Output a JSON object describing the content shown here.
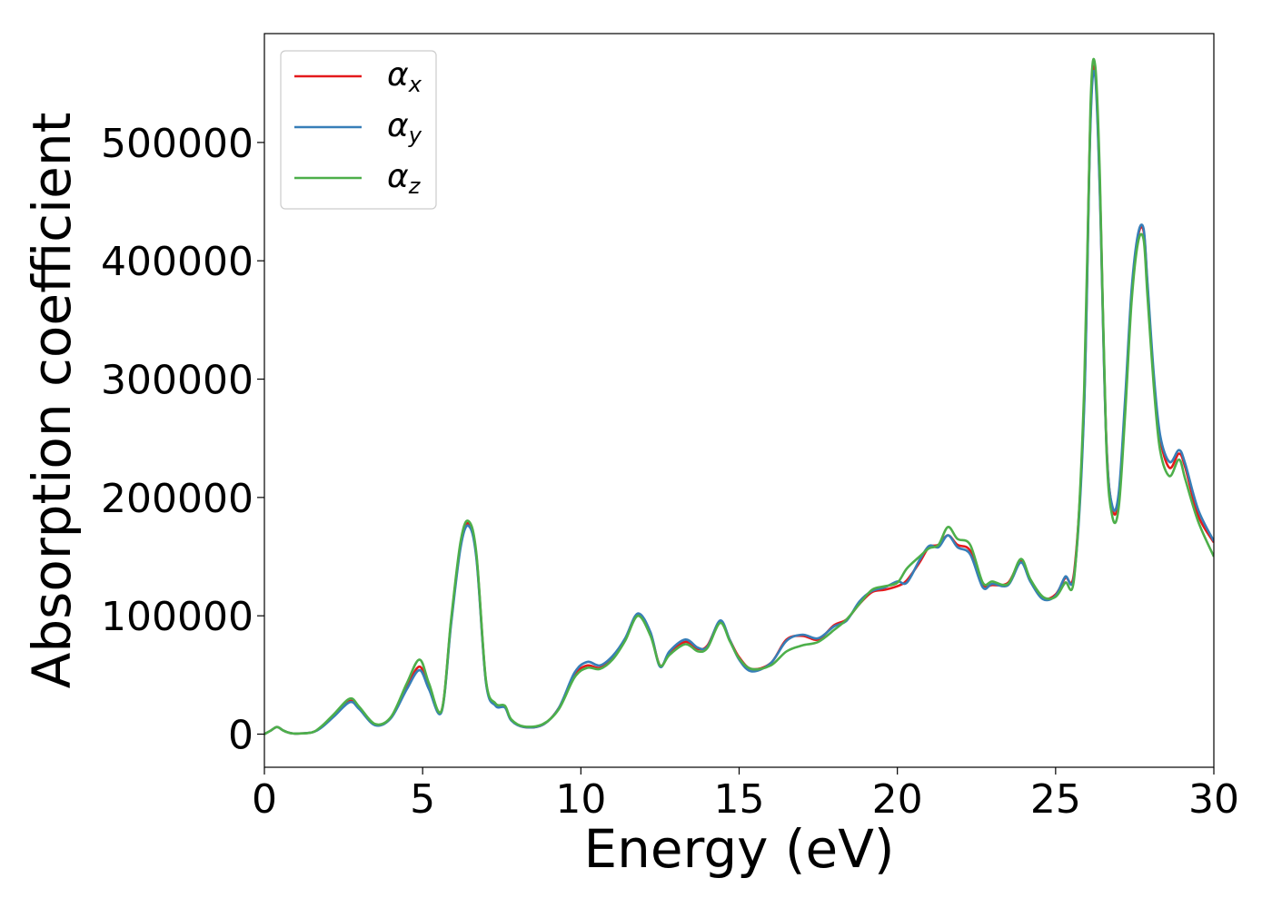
{
  "chart_data": {
    "type": "line",
    "xlabel": "Energy (eV)",
    "ylabel": "Absorption coefficient",
    "xlim": [
      0,
      30
    ],
    "ylim": [
      -28000,
      592000
    ],
    "xticks": [
      "0",
      "5",
      "10",
      "15",
      "20",
      "25",
      "30"
    ],
    "xtick_values": [
      0,
      5,
      10,
      15,
      20,
      25,
      30
    ],
    "yticks": [
      "0",
      "100000",
      "200000",
      "300000",
      "400000",
      "500000"
    ],
    "ytick_values": [
      0,
      100000,
      200000,
      300000,
      400000,
      500000
    ],
    "grid": false,
    "legend_position": "top-left",
    "series": [
      {
        "name": "αx",
        "legend_base": "α",
        "legend_sub": "x",
        "color": "#e41a1c",
        "x": [
          0,
          0.2,
          0.4,
          0.6,
          0.8,
          1.0,
          1.5,
          1.8,
          2.2,
          2.7,
          3.0,
          3.5,
          4.0,
          4.5,
          4.9,
          5.2,
          5.6,
          5.9,
          6.2,
          6.45,
          6.7,
          7.0,
          7.3,
          7.6,
          7.8,
          8.2,
          8.8,
          9.3,
          9.8,
          10.2,
          10.6,
          11.0,
          11.4,
          11.8,
          12.2,
          12.5,
          12.8,
          13.3,
          13.7,
          14.0,
          14.4,
          14.7,
          15.0,
          15.4,
          16.0,
          16.5,
          17.0,
          17.5,
          18.0,
          18.4,
          18.8,
          19.2,
          19.6,
          20.0,
          20.3,
          20.7,
          21.0,
          21.3,
          21.6,
          21.9,
          22.3,
          22.7,
          23.0,
          23.5,
          23.9,
          24.2,
          24.6,
          25.0,
          25.3,
          25.6,
          25.9,
          26.1,
          26.25,
          26.4,
          26.6,
          26.8,
          27.0,
          27.2,
          27.4,
          27.6,
          27.78,
          27.9,
          28.1,
          28.3,
          28.6,
          28.9,
          29.1,
          29.5,
          30.0
        ],
        "y": [
          0,
          3000,
          6000,
          3000,
          1000,
          500,
          1500,
          6000,
          16000,
          28000,
          22000,
          8000,
          14000,
          40000,
          57000,
          40000,
          20000,
          95000,
          160000,
          178000,
          150000,
          45000,
          25000,
          23000,
          12000,
          6000,
          8000,
          22000,
          50000,
          58000,
          56000,
          65000,
          80000,
          101000,
          85000,
          58000,
          68000,
          78000,
          72000,
          75000,
          95000,
          80000,
          65000,
          55000,
          60000,
          80000,
          83000,
          80000,
          92000,
          97000,
          110000,
          120000,
          122000,
          125000,
          130000,
          145000,
          158000,
          160000,
          168000,
          160000,
          155000,
          127000,
          126000,
          128000,
          146000,
          130000,
          115000,
          118000,
          132000,
          140000,
          280000,
          520000,
          560000,
          460000,
          250000,
          190000,
          200000,
          280000,
          370000,
          420000,
          425000,
          380000,
          300000,
          250000,
          225000,
          237000,
          225000,
          185000,
          162000
        ]
      },
      {
        "name": "αy",
        "legend_base": "α",
        "legend_sub": "y",
        "color": "#377eb8",
        "x": [
          0,
          0.2,
          0.4,
          0.6,
          0.8,
          1.0,
          1.5,
          1.8,
          2.2,
          2.7,
          3.0,
          3.5,
          4.0,
          4.5,
          4.9,
          5.2,
          5.6,
          5.9,
          6.2,
          6.45,
          6.7,
          7.0,
          7.3,
          7.6,
          7.8,
          8.2,
          8.8,
          9.3,
          9.8,
          10.2,
          10.6,
          11.0,
          11.4,
          11.8,
          12.2,
          12.5,
          12.8,
          13.3,
          13.7,
          14.0,
          14.4,
          14.7,
          15.0,
          15.4,
          16.0,
          16.5,
          17.0,
          17.5,
          18.0,
          18.4,
          18.8,
          19.2,
          19.6,
          20.0,
          20.3,
          20.7,
          21.0,
          21.3,
          21.6,
          21.9,
          22.3,
          22.7,
          23.0,
          23.5,
          23.9,
          24.2,
          24.6,
          25.0,
          25.3,
          25.6,
          25.9,
          26.1,
          26.25,
          26.4,
          26.6,
          26.8,
          27.0,
          27.2,
          27.4,
          27.6,
          27.78,
          27.9,
          28.1,
          28.3,
          28.6,
          28.9,
          29.1,
          29.5,
          30.0
        ],
        "y": [
          0,
          3000,
          6000,
          3000,
          1000,
          500,
          1500,
          5500,
          15000,
          27000,
          21000,
          7500,
          13500,
          38000,
          54000,
          38000,
          19000,
          93000,
          158000,
          176000,
          148000,
          44000,
          24000,
          22500,
          11500,
          6000,
          8000,
          22000,
          52000,
          61000,
          58000,
          66000,
          81000,
          102000,
          86000,
          57000,
          70000,
          80000,
          73000,
          74000,
          96000,
          80000,
          63000,
          53000,
          60000,
          79000,
          84000,
          81000,
          91000,
          96000,
          112000,
          121000,
          124000,
          129000,
          128000,
          147000,
          159000,
          158000,
          168000,
          158000,
          152000,
          124000,
          127000,
          126000,
          145000,
          129000,
          114000,
          117000,
          133000,
          137000,
          275000,
          515000,
          556000,
          455000,
          248000,
          192000,
          205000,
          285000,
          375000,
          422000,
          427000,
          383000,
          305000,
          253000,
          230000,
          240000,
          228000,
          190000,
          163000
        ]
      },
      {
        "name": "αz",
        "legend_base": "α",
        "legend_sub": "z",
        "color": "#4daf4a",
        "x": [
          0,
          0.2,
          0.4,
          0.6,
          0.8,
          1.0,
          1.5,
          1.8,
          2.2,
          2.7,
          3.0,
          3.5,
          4.0,
          4.5,
          4.9,
          5.2,
          5.6,
          5.9,
          6.2,
          6.45,
          6.7,
          7.0,
          7.3,
          7.6,
          7.8,
          8.2,
          8.8,
          9.3,
          9.8,
          10.2,
          10.6,
          11.0,
          11.4,
          11.8,
          12.2,
          12.5,
          12.8,
          13.3,
          13.7,
          14.0,
          14.4,
          14.7,
          15.0,
          15.4,
          16.0,
          16.5,
          17.0,
          17.5,
          18.0,
          18.4,
          18.8,
          19.2,
          19.6,
          20.0,
          20.3,
          20.7,
          21.0,
          21.3,
          21.6,
          21.9,
          22.3,
          22.7,
          23.0,
          23.5,
          23.9,
          24.2,
          24.6,
          25.0,
          25.3,
          25.6,
          25.9,
          26.1,
          26.25,
          26.4,
          26.6,
          26.8,
          27.0,
          27.2,
          27.4,
          27.6,
          27.78,
          27.9,
          28.1,
          28.3,
          28.6,
          28.9,
          29.1,
          29.5,
          30.0
        ],
        "y": [
          0,
          3000,
          6000,
          3000,
          1000,
          500,
          1500,
          6500,
          17000,
          30000,
          23000,
          8500,
          14500,
          43000,
          63000,
          43000,
          20000,
          97000,
          163000,
          180000,
          152000,
          46000,
          26000,
          24000,
          12500,
          6500,
          8500,
          21000,
          48000,
          56000,
          55000,
          63000,
          79000,
          100000,
          83000,
          58000,
          67000,
          76000,
          70000,
          73000,
          94000,
          79000,
          64000,
          55000,
          58000,
          70000,
          75000,
          78000,
          88000,
          97000,
          110000,
          122000,
          125000,
          128000,
          140000,
          150000,
          157000,
          160000,
          175000,
          165000,
          160000,
          128000,
          129000,
          127000,
          148000,
          131000,
          116000,
          116000,
          128000,
          135000,
          290000,
          530000,
          565000,
          470000,
          245000,
          183000,
          193000,
          272000,
          365000,
          415000,
          418000,
          372000,
          295000,
          240000,
          218000,
          232000,
          215000,
          180000,
          150000
        ]
      }
    ]
  }
}
